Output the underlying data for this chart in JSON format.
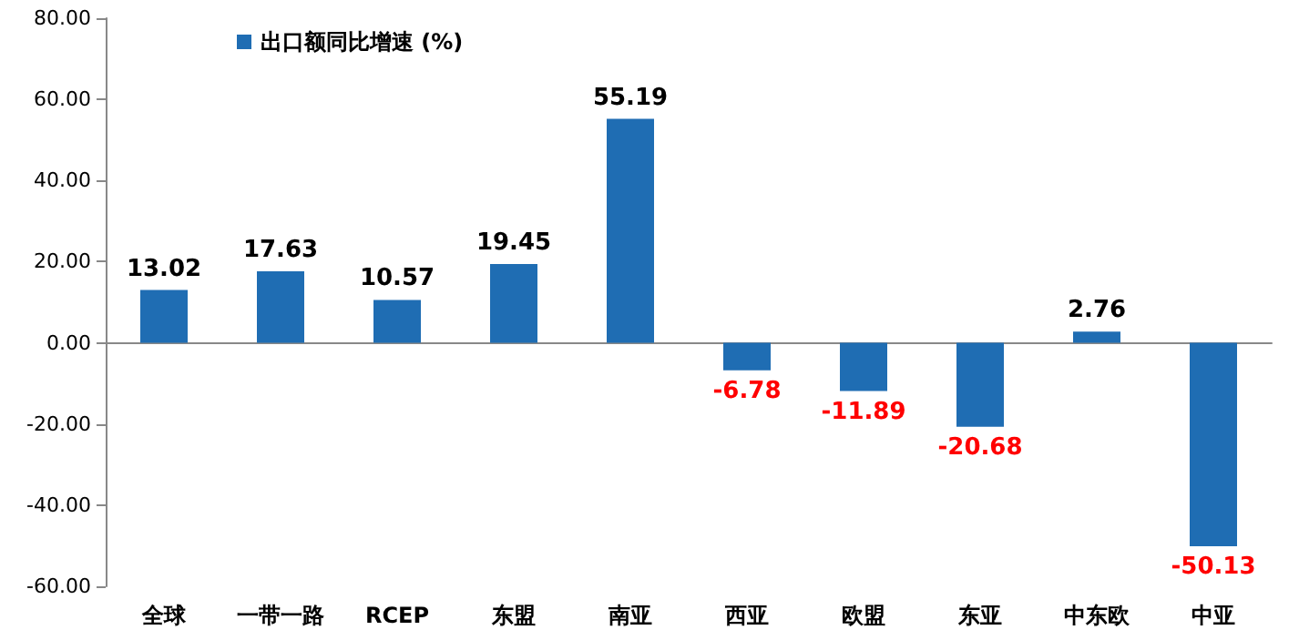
{
  "chart_data": {
    "type": "bar",
    "categories": [
      "全球",
      "一带一路",
      "RCEP",
      "东盟",
      "南亚",
      "西亚",
      "欧盟",
      "东亚",
      "中东欧",
      "中亚"
    ],
    "series": [
      {
        "name": "出口额同比增速 (%)",
        "color": "#1f6db3",
        "values": [
          13.02,
          17.63,
          10.57,
          19.45,
          55.19,
          -6.78,
          -11.89,
          -20.68,
          2.76,
          -50.13
        ]
      }
    ],
    "ylim": [
      -60,
      80
    ],
    "yticks": [
      {
        "value": -60,
        "label": "-60.00"
      },
      {
        "value": -40,
        "label": "-40.00"
      },
      {
        "value": -20,
        "label": "-20.00"
      },
      {
        "value": 0,
        "label": "0.00"
      },
      {
        "value": 20,
        "label": "20.00"
      },
      {
        "value": 40,
        "label": "40.00"
      },
      {
        "value": 60,
        "label": "60.00"
      },
      {
        "value": 80,
        "label": "80.00"
      }
    ],
    "data_labels": true,
    "legend": "top left"
  }
}
